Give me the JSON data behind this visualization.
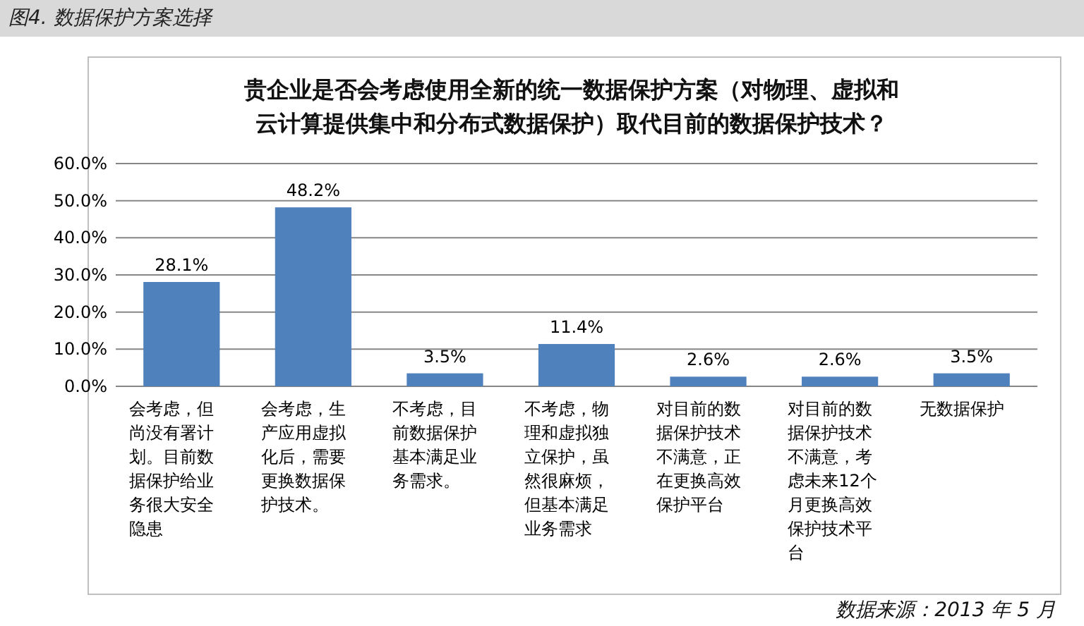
{
  "chart_data": {
    "type": "bar",
    "title": "贵企业是否会考虑使用全新的统一数据保护方案（对物理、虚拟和云计算提供集中和分布式数据保护）取代目前的数据保护技术？",
    "categories": [
      "会考虑，但尚没有署计划。目前数据保护给业务很大安全隐患",
      "会考虑，生产应用虚拟化后，需要更换数据保护技术。",
      "不考虑，目前数据保护基本满足业务需求。",
      "不考虑，物理和虚拟独立保护，虽然很麻烦，但基本满足业务需求",
      "对目前的数据保护技术不满意，正在更换高效保护平台",
      "对目前的数据保护技术不满意，考虑未来12个月更换高效保护技术平台",
      "无数据保护"
    ],
    "values": [
      28.1,
      48.2,
      3.5,
      11.4,
      2.6,
      2.6,
      3.5
    ],
    "value_labels": [
      "28.1%",
      "48.2%",
      "3.5%",
      "11.4%",
      "2.6%",
      "2.6%",
      "3.5%"
    ],
    "color": "#4f81bd",
    "ylim": [
      0,
      60
    ],
    "yticks": [
      {
        "value": 0,
        "label": "0.0%"
      },
      {
        "value": 10,
        "label": "10.0%"
      },
      {
        "value": 20,
        "label": "20.0%"
      },
      {
        "value": 30,
        "label": "30.0%"
      },
      {
        "value": 40,
        "label": "40.0%"
      },
      {
        "value": 50,
        "label": "50.0%"
      },
      {
        "value": 60,
        "label": "60.0%"
      }
    ],
    "grid": "y",
    "annotations": [
      "图4. 数据保护方案选择",
      "数据来源：2013 年 5 月"
    ]
  }
}
